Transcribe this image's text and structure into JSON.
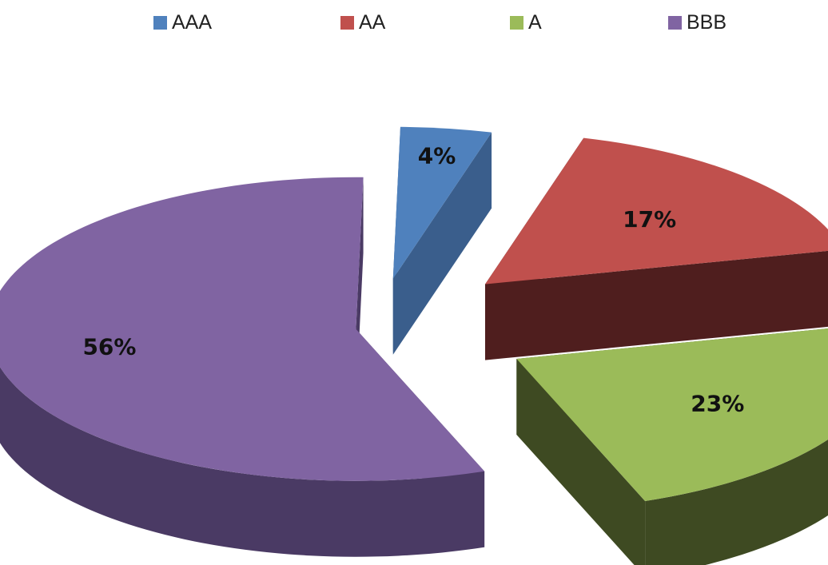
{
  "chart_data": {
    "type": "pie",
    "variant": "3d-exploded",
    "legend_position": "top",
    "categories": [
      "AAA",
      "AA",
      "A",
      "BBB"
    ],
    "values": [
      4,
      17,
      23,
      56
    ],
    "labels": [
      "4%",
      "17%",
      "23%",
      "56%"
    ],
    "colors": [
      "#4f81bd",
      "#c0504d",
      "#9bbb59",
      "#8064a2"
    ],
    "side_colors": [
      "#3a5e8c",
      "#4f1e1e",
      "#3e4a22",
      "#4a3a64"
    ]
  }
}
